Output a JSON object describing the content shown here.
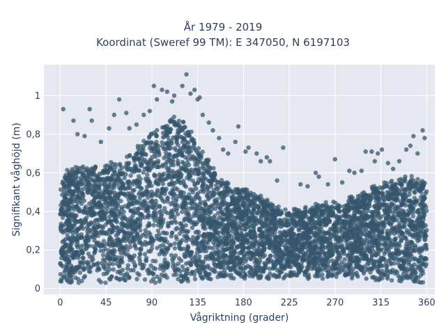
{
  "chart_data": {
    "type": "scatter",
    "title": "År 1979 - 2019",
    "subtitle": "Koordinat (Sweref 99 TM): E 347050, N 6197103",
    "xlabel": "Vågriktning (grader)",
    "ylabel": "Signifikant våghöjd (m)",
    "xlim": [
      -16,
      368
    ],
    "ylim": [
      -0.03,
      1.16
    ],
    "xticks": [
      0,
      45,
      90,
      135,
      180,
      225,
      270,
      315,
      360
    ],
    "xtick_labels": [
      "0",
      "45",
      "90",
      "135",
      "180",
      "225",
      "270",
      "315",
      "360"
    ],
    "yticks": [
      0,
      0.2,
      0.4,
      0.6,
      0.8,
      1
    ],
    "ytick_labels": [
      "0",
      "0,2",
      "0,4",
      "0,6",
      "0,8",
      "1"
    ],
    "grid": true,
    "marker_color": "#34566c",
    "background_color": "#e5e8f0",
    "upper_envelope": {
      "x": [
        0,
        10,
        20,
        30,
        40,
        50,
        60,
        70,
        80,
        90,
        100,
        110,
        120,
        130,
        140,
        150,
        160,
        170,
        180,
        190,
        200,
        210,
        220,
        230,
        240,
        250,
        260,
        270,
        280,
        290,
        300,
        310,
        320,
        330,
        340,
        350,
        360
      ],
      "y": [
        0.56,
        0.62,
        0.63,
        0.62,
        0.62,
        0.65,
        0.66,
        0.7,
        0.75,
        0.8,
        0.84,
        0.88,
        0.86,
        0.8,
        0.7,
        0.62,
        0.56,
        0.53,
        0.52,
        0.5,
        0.47,
        0.43,
        0.4,
        0.4,
        0.42,
        0.43,
        0.44,
        0.44,
        0.45,
        0.47,
        0.5,
        0.52,
        0.55,
        0.56,
        0.57,
        0.56,
        0.55
      ]
    },
    "lower_envelope": {
      "x": [
        0,
        90,
        135,
        180,
        225,
        270,
        315,
        360
      ],
      "y": [
        0.03,
        0.03,
        0.03,
        0.05,
        0.05,
        0.05,
        0.04,
        0.03
      ]
    },
    "outliers": [
      {
        "x": 3,
        "y": 0.93
      },
      {
        "x": 13,
        "y": 0.87
      },
      {
        "x": 17,
        "y": 0.8
      },
      {
        "x": 29,
        "y": 0.93
      },
      {
        "x": 31,
        "y": 0.87
      },
      {
        "x": 24,
        "y": 0.79
      },
      {
        "x": 40,
        "y": 0.76
      },
      {
        "x": 48,
        "y": 0.83
      },
      {
        "x": 53,
        "y": 0.9
      },
      {
        "x": 58,
        "y": 0.98
      },
      {
        "x": 65,
        "y": 0.91
      },
      {
        "x": 68,
        "y": 0.83
      },
      {
        "x": 75,
        "y": 0.85
      },
      {
        "x": 82,
        "y": 0.9
      },
      {
        "x": 88,
        "y": 0.92
      },
      {
        "x": 92,
        "y": 1.05
      },
      {
        "x": 95,
        "y": 0.98
      },
      {
        "x": 100,
        "y": 1.03
      },
      {
        "x": 105,
        "y": 1.02
      },
      {
        "x": 110,
        "y": 0.97
      },
      {
        "x": 112,
        "y": 1.0
      },
      {
        "x": 120,
        "y": 1.05
      },
      {
        "x": 124,
        "y": 1.11
      },
      {
        "x": 128,
        "y": 1.01
      },
      {
        "x": 132,
        "y": 1.03
      },
      {
        "x": 135,
        "y": 0.98
      },
      {
        "x": 137,
        "y": 0.99
      },
      {
        "x": 140,
        "y": 0.9
      },
      {
        "x": 146,
        "y": 0.86
      },
      {
        "x": 150,
        "y": 0.82
      },
      {
        "x": 156,
        "y": 0.78
      },
      {
        "x": 160,
        "y": 0.72
      },
      {
        "x": 165,
        "y": 0.7
      },
      {
        "x": 172,
        "y": 0.76
      },
      {
        "x": 175,
        "y": 0.84
      },
      {
        "x": 182,
        "y": 0.71
      },
      {
        "x": 185,
        "y": 0.73
      },
      {
        "x": 193,
        "y": 0.7
      },
      {
        "x": 197,
        "y": 0.66
      },
      {
        "x": 203,
        "y": 0.68
      },
      {
        "x": 206,
        "y": 0.66
      },
      {
        "x": 213,
        "y": 0.56
      },
      {
        "x": 219,
        "y": 0.73
      },
      {
        "x": 236,
        "y": 0.54
      },
      {
        "x": 243,
        "y": 0.53
      },
      {
        "x": 251,
        "y": 0.6
      },
      {
        "x": 254,
        "y": 0.58
      },
      {
        "x": 263,
        "y": 0.54
      },
      {
        "x": 270,
        "y": 0.67
      },
      {
        "x": 277,
        "y": 0.55
      },
      {
        "x": 284,
        "y": 0.61
      },
      {
        "x": 289,
        "y": 0.6
      },
      {
        "x": 296,
        "y": 0.61
      },
      {
        "x": 300,
        "y": 0.71
      },
      {
        "x": 306,
        "y": 0.71
      },
      {
        "x": 309,
        "y": 0.66
      },
      {
        "x": 312,
        "y": 0.7
      },
      {
        "x": 316,
        "y": 0.72
      },
      {
        "x": 322,
        "y": 0.65
      },
      {
        "x": 327,
        "y": 0.62
      },
      {
        "x": 333,
        "y": 0.66
      },
      {
        "x": 340,
        "y": 0.72
      },
      {
        "x": 344,
        "y": 0.74
      },
      {
        "x": 347,
        "y": 0.79
      },
      {
        "x": 351,
        "y": 0.7
      },
      {
        "x": 356,
        "y": 0.82
      },
      {
        "x": 358,
        "y": 0.78
      }
    ]
  }
}
